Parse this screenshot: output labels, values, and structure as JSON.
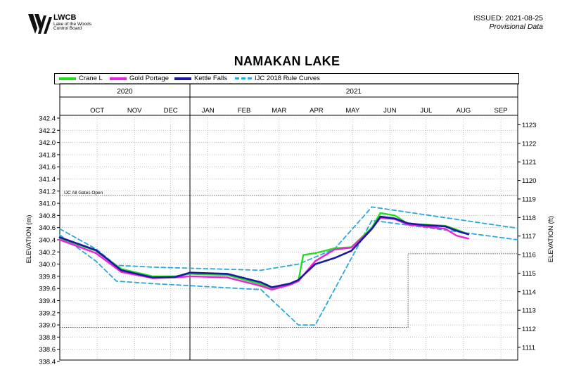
{
  "header": {
    "logo_abbr": "LWCB",
    "logo_line1": "Lake of the Woods",
    "logo_line2": "Control Board",
    "issued": "ISSUED: 2021-08-25",
    "provisional": "Provisional Data"
  },
  "colors": {
    "crane": "#22dd22",
    "gold": "#ee22dd",
    "kettle": "#1a1aa0",
    "ijc": "#29a8e0",
    "grid": "#999999"
  },
  "chart_data": {
    "type": "line",
    "title": "NAMAKAN LAKE",
    "ylabel_left": "ELEVATION (m)",
    "ylabel_right": "ELEVATION (ft)",
    "y_left_range": [
      338.4,
      342.4
    ],
    "y_left_ticks": [
      "342.4",
      "342.2",
      "342.0",
      "341.8",
      "341.6",
      "341.4",
      "341.2",
      "341.0",
      "340.8",
      "340.6",
      "340.4",
      "340.2",
      "340.0",
      "339.8",
      "339.6",
      "339.4",
      "339.2",
      "339.0",
      "338.8",
      "338.6",
      "338.4"
    ],
    "y_right_ticks": [
      "1123",
      "1122",
      "1121",
      "1120",
      "1119",
      "1118",
      "1117",
      "1116",
      "1115",
      "1114",
      "1113",
      "1112",
      "1111"
    ],
    "years": [
      "2020",
      "2021"
    ],
    "months": [
      "OCT",
      "NOV",
      "DEC",
      "JAN",
      "FEB",
      "MAR",
      "APR",
      "MAY",
      "JUN",
      "JUL",
      "AUG",
      "SEP"
    ],
    "x_range": [
      "2020-09-15",
      "2021-09-30"
    ],
    "annotation": "IJC All Gates Open",
    "all_gates_open_level": 341.13,
    "legend": [
      "Crane L",
      "Gold Portage",
      "Kettle Falls",
      "IJC 2018 Rule Curves"
    ],
    "series": [
      {
        "name": "Crane L",
        "points": [
          [
            "2020-09-15",
            340.42
          ],
          [
            "2020-10-15",
            340.22
          ],
          [
            "2020-11-05",
            339.92
          ],
          [
            "2020-12-01",
            339.8
          ],
          [
            "2020-12-20",
            339.8
          ],
          [
            "2021-01-01",
            339.84
          ],
          [
            "2021-02-01",
            339.82
          ],
          [
            "2021-03-01",
            339.67
          ],
          [
            "2021-03-10",
            339.6
          ],
          [
            "2021-03-25",
            339.66
          ],
          [
            "2021-04-01",
            339.72
          ],
          [
            "2021-04-05",
            340.15
          ],
          [
            "2021-04-15",
            340.18
          ],
          [
            "2021-05-01",
            340.26
          ],
          [
            "2021-05-15",
            340.28
          ],
          [
            "2021-06-01",
            340.6
          ],
          [
            "2021-06-08",
            340.84
          ],
          [
            "2021-06-20",
            340.8
          ],
          [
            "2021-07-01",
            340.66
          ],
          [
            "2021-07-15",
            340.65
          ],
          [
            "2021-08-01",
            340.63
          ],
          [
            "2021-08-10",
            340.57
          ],
          [
            "2021-08-20",
            340.49
          ]
        ]
      },
      {
        "name": "Gold Portage",
        "points": [
          [
            "2020-09-15",
            340.4
          ],
          [
            "2020-10-15",
            340.18
          ],
          [
            "2020-11-05",
            339.87
          ],
          [
            "2020-12-01",
            339.77
          ],
          [
            "2020-12-20",
            339.78
          ],
          [
            "2021-01-01",
            339.8
          ],
          [
            "2021-02-01",
            339.78
          ],
          [
            "2021-03-01",
            339.64
          ],
          [
            "2021-03-10",
            339.58
          ],
          [
            "2021-03-25",
            339.66
          ],
          [
            "2021-04-01",
            339.72
          ],
          [
            "2021-04-15",
            340.05
          ],
          [
            "2021-05-01",
            340.24
          ],
          [
            "2021-05-15",
            340.27
          ],
          [
            "2021-06-01",
            340.58
          ],
          [
            "2021-06-08",
            340.76
          ],
          [
            "2021-06-20",
            340.74
          ],
          [
            "2021-07-01",
            340.65
          ],
          [
            "2021-07-15",
            340.62
          ],
          [
            "2021-08-01",
            340.58
          ],
          [
            "2021-08-10",
            340.47
          ],
          [
            "2021-08-20",
            340.42
          ]
        ]
      },
      {
        "name": "Kettle Falls",
        "points": [
          [
            "2020-09-15",
            340.44
          ],
          [
            "2020-10-15",
            340.23
          ],
          [
            "2020-11-05",
            339.9
          ],
          [
            "2020-12-01",
            339.78
          ],
          [
            "2020-12-20",
            339.79
          ],
          [
            "2021-01-01",
            339.86
          ],
          [
            "2021-02-01",
            339.84
          ],
          [
            "2021-03-01",
            339.7
          ],
          [
            "2021-03-10",
            339.62
          ],
          [
            "2021-03-25",
            339.68
          ],
          [
            "2021-04-01",
            339.74
          ],
          [
            "2021-04-15",
            340.0
          ],
          [
            "2021-05-01",
            340.1
          ],
          [
            "2021-05-15",
            340.22
          ],
          [
            "2021-06-01",
            340.58
          ],
          [
            "2021-06-08",
            340.78
          ],
          [
            "2021-06-20",
            340.75
          ],
          [
            "2021-07-01",
            340.67
          ],
          [
            "2021-07-15",
            340.64
          ],
          [
            "2021-08-01",
            340.62
          ],
          [
            "2021-08-10",
            340.55
          ],
          [
            "2021-08-20",
            340.49
          ]
        ]
      },
      {
        "name": "IJC 2018 Rule Curves",
        "points": [
          [
            "2020-09-15",
            340.58
          ],
          [
            "2020-10-15",
            340.25
          ],
          [
            "2020-11-01",
            339.98
          ],
          [
            "2020-12-01",
            339.95
          ],
          [
            "2021-03-01",
            339.9
          ],
          [
            "2021-04-01",
            340.0
          ],
          [
            "2021-05-01",
            340.25
          ],
          [
            "2021-06-01",
            340.94
          ],
          [
            "2021-09-30",
            340.59
          ]
        ]
      },
      {
        "name": "IJC 2018 Rule Curves",
        "points": [
          [
            "2020-09-15",
            340.48
          ],
          [
            "2020-10-15",
            340.05
          ],
          [
            "2020-11-01",
            339.72
          ],
          [
            "2020-12-01",
            339.68
          ],
          [
            "2021-03-01",
            339.58
          ],
          [
            "2021-04-01",
            339.0
          ],
          [
            "2021-04-15",
            339.0
          ],
          [
            "2021-06-01",
            340.72
          ],
          [
            "2021-09-30",
            340.4
          ]
        ]
      }
    ],
    "grid": true
  }
}
